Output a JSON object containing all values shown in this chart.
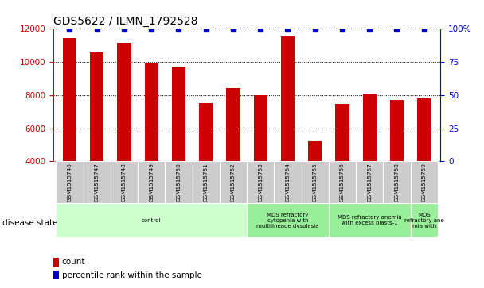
{
  "title": "GDS5622 / ILMN_1792528",
  "samples": [
    "GSM1515746",
    "GSM1515747",
    "GSM1515748",
    "GSM1515749",
    "GSM1515750",
    "GSM1515751",
    "GSM1515752",
    "GSM1515753",
    "GSM1515754",
    "GSM1515755",
    "GSM1515756",
    "GSM1515757",
    "GSM1515758",
    "GSM1515759"
  ],
  "counts": [
    11450,
    10600,
    11150,
    9900,
    9700,
    7500,
    8400,
    8000,
    11550,
    5200,
    7450,
    8050,
    7700,
    7800
  ],
  "percentile_ranks": [
    100,
    100,
    100,
    100,
    100,
    100,
    100,
    100,
    100,
    100,
    100,
    100,
    100,
    100
  ],
  "bar_color": "#cc0000",
  "percentile_color": "#0000cc",
  "ylim_left": [
    4000,
    12000
  ],
  "ylim_right": [
    0,
    100
  ],
  "yticks_left": [
    4000,
    6000,
    8000,
    10000,
    12000
  ],
  "yticks_right": [
    0,
    25,
    50,
    75,
    100
  ],
  "disease_groups": [
    {
      "label": "control",
      "start": 0,
      "end": 7,
      "color": "#ccffcc"
    },
    {
      "label": "MDS refractory\ncytopenia with\nmultilineage dysplasia",
      "start": 7,
      "end": 10,
      "color": "#99ee99"
    },
    {
      "label": "MDS refractory anemia\nwith excess blasts-1",
      "start": 10,
      "end": 13,
      "color": "#99ee99"
    },
    {
      "label": "MDS\nrefractory ane\nmia with",
      "start": 13,
      "end": 14,
      "color": "#99ee99"
    }
  ],
  "disease_state_label": "disease state",
  "legend_count_label": "count",
  "legend_percentile_label": "percentile rank within the sample",
  "right_axis_color": "#0000cc",
  "left_axis_color": "#cc0000",
  "sample_box_color": "#cccccc"
}
